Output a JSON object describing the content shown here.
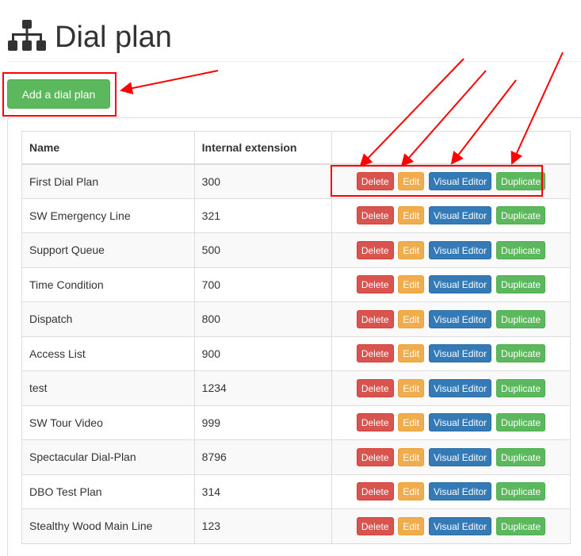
{
  "header": {
    "title": "Dial plan",
    "icon": "sitemap-icon"
  },
  "toolbar": {
    "add_label": "Add a dial plan"
  },
  "table": {
    "columns": [
      "Name",
      "Internal extension",
      ""
    ],
    "actions": {
      "delete": "Delete",
      "edit": "Edit",
      "visual": "Visual Editor",
      "duplicate": "Duplicate"
    },
    "rows": [
      {
        "name": "First Dial Plan",
        "ext": "300"
      },
      {
        "name": "SW Emergency Line",
        "ext": "321"
      },
      {
        "name": "Support Queue",
        "ext": "500"
      },
      {
        "name": "Time Condition",
        "ext": "700"
      },
      {
        "name": "Dispatch",
        "ext": "800"
      },
      {
        "name": "Access List",
        "ext": "900"
      },
      {
        "name": "test",
        "ext": "1234"
      },
      {
        "name": "SW Tour Video",
        "ext": "999"
      },
      {
        "name": "Spectacular Dial-Plan",
        "ext": "8796"
      },
      {
        "name": "DBO Test Plan",
        "ext": "314"
      },
      {
        "name": "Stealthy Wood Main Line",
        "ext": "123"
      }
    ]
  },
  "colors": {
    "annotation": "#ff0000",
    "success": "#5cb85c",
    "danger": "#d9534f",
    "warning": "#f0ad4e",
    "primary": "#337ab7"
  }
}
